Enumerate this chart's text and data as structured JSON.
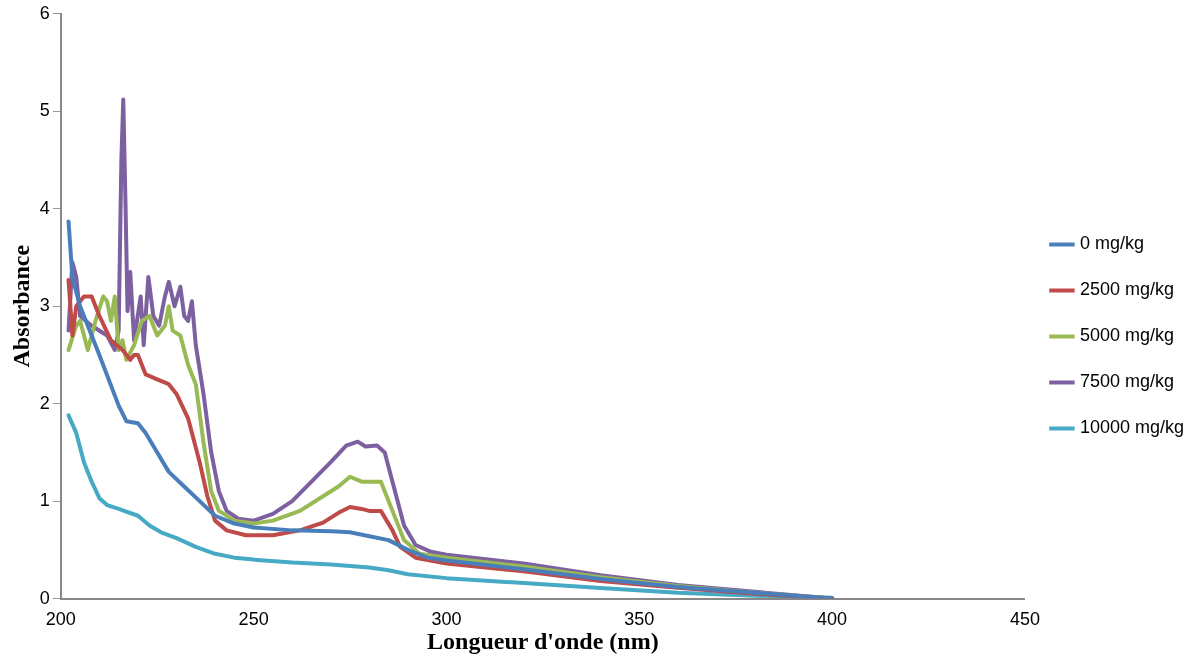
{
  "chart_data": {
    "type": "line",
    "xlabel": "Longueur d'onde (nm)",
    "ylabel": "Absorbance",
    "xlim": [
      200,
      450
    ],
    "xticks": [
      200,
      250,
      300,
      350,
      400,
      450
    ],
    "ylim": [
      0,
      6
    ],
    "yticks": [
      0,
      1,
      2,
      3,
      4,
      5,
      6
    ],
    "grid": false,
    "legend": "right",
    "marker": "none",
    "line_style": "solid",
    "series": [
      {
        "name": "0 mg/kg",
        "color": "#4a7ebb",
        "x": [
          202,
          203,
          205,
          210,
          215,
          217,
          220,
          222,
          225,
          228,
          232,
          236,
          240,
          245,
          250,
          260,
          270,
          275,
          280,
          285,
          290,
          295,
          300,
          320,
          340,
          360,
          380,
          400
        ],
        "values": [
          3.87,
          3.3,
          3.0,
          2.5,
          1.98,
          1.82,
          1.8,
          1.7,
          1.5,
          1.3,
          1.15,
          1.0,
          0.85,
          0.77,
          0.73,
          0.7,
          0.69,
          0.68,
          0.64,
          0.6,
          0.5,
          0.42,
          0.39,
          0.3,
          0.2,
          0.12,
          0.06,
          0
        ]
      },
      {
        "name": "2500 mg/kg",
        "color": "#be4b48",
        "x": [
          202,
          203,
          204,
          206,
          208,
          210,
          213,
          216,
          218,
          219,
          220,
          222,
          225,
          228,
          230,
          233,
          236,
          238,
          240,
          243,
          248,
          255,
          262,
          268,
          272,
          275,
          278,
          280,
          283,
          286,
          288,
          292,
          300,
          320,
          340,
          360,
          380,
          400
        ],
        "values": [
          3.27,
          2.7,
          3.0,
          3.1,
          3.1,
          2.9,
          2.65,
          2.55,
          2.45,
          2.5,
          2.5,
          2.3,
          2.25,
          2.2,
          2.1,
          1.85,
          1.4,
          1.05,
          0.8,
          0.7,
          0.65,
          0.65,
          0.7,
          0.78,
          0.88,
          0.94,
          0.92,
          0.9,
          0.9,
          0.7,
          0.53,
          0.42,
          0.36,
          0.28,
          0.18,
          0.11,
          0.05,
          0
        ]
      },
      {
        "name": "5000 mg/kg",
        "color": "#98b954",
        "x": [
          202,
          204,
          205,
          207,
          209,
          211,
          212,
          213,
          214,
          215,
          216,
          217,
          219,
          221,
          223,
          225,
          227,
          228,
          229,
          231,
          233,
          235,
          237,
          239,
          241,
          245,
          250,
          255,
          262,
          268,
          272,
          275,
          278,
          283,
          286,
          289,
          293,
          300,
          320,
          340,
          360,
          380,
          400
        ],
        "values": [
          2.55,
          2.8,
          2.85,
          2.55,
          2.85,
          3.1,
          3.05,
          2.85,
          3.1,
          2.55,
          2.65,
          2.45,
          2.6,
          2.85,
          2.9,
          2.7,
          2.8,
          3.0,
          2.75,
          2.7,
          2.4,
          2.2,
          1.6,
          1.1,
          0.9,
          0.8,
          0.77,
          0.8,
          0.9,
          1.05,
          1.15,
          1.25,
          1.2,
          1.2,
          0.9,
          0.6,
          0.46,
          0.42,
          0.33,
          0.22,
          0.13,
          0.06,
          0
        ]
      },
      {
        "name": "7500 mg/kg",
        "color": "#7d60a0",
        "x": [
          202,
          203,
          204,
          205,
          208,
          212,
          214,
          215,
          215.7,
          216.2,
          216.8,
          217.3,
          218,
          219,
          220.7,
          221.5,
          222.7,
          224,
          225.5,
          227,
          228,
          229.5,
          231,
          232,
          233,
          234,
          235,
          237,
          239,
          241,
          243,
          246,
          250,
          255,
          260,
          265,
          270,
          274,
          277,
          279,
          282,
          284,
          286,
          289,
          292,
          296,
          300,
          320,
          340,
          360,
          380,
          400
        ],
        "values": [
          2.75,
          3.45,
          3.3,
          2.9,
          2.8,
          2.7,
          2.55,
          2.75,
          4.5,
          5.12,
          4.0,
          2.95,
          3.35,
          2.65,
          3.1,
          2.6,
          3.3,
          2.9,
          2.8,
          3.1,
          3.25,
          3.0,
          3.2,
          2.9,
          2.85,
          3.05,
          2.6,
          2.1,
          1.5,
          1.1,
          0.9,
          0.82,
          0.8,
          0.87,
          1.0,
          1.2,
          1.4,
          1.57,
          1.61,
          1.56,
          1.57,
          1.5,
          1.2,
          0.75,
          0.55,
          0.48,
          0.45,
          0.36,
          0.24,
          0.14,
          0.07,
          0
        ]
      },
      {
        "name": "10000 mg/kg",
        "color": "#46aac5",
        "x": [
          202,
          204,
          206,
          208,
          210,
          212,
          215,
          220,
          223,
          226,
          230,
          235,
          240,
          245,
          250,
          260,
          270,
          280,
          285,
          290,
          300,
          320,
          340,
          360,
          380,
          400
        ],
        "values": [
          1.88,
          1.7,
          1.4,
          1.2,
          1.03,
          0.96,
          0.92,
          0.85,
          0.75,
          0.68,
          0.62,
          0.53,
          0.46,
          0.42,
          0.4,
          0.37,
          0.35,
          0.32,
          0.29,
          0.25,
          0.21,
          0.16,
          0.11,
          0.06,
          0.03,
          0.01
        ]
      }
    ]
  }
}
